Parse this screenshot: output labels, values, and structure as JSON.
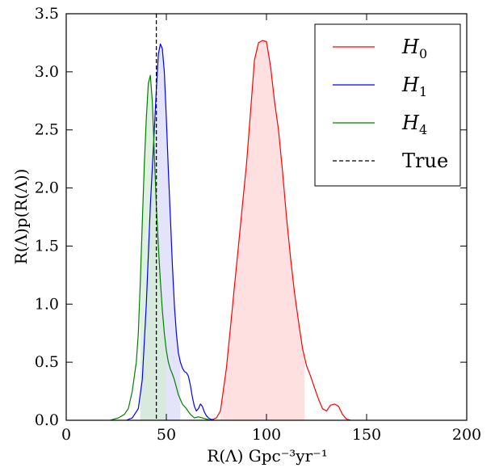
{
  "chart_data": {
    "type": "line",
    "title": "",
    "xlabel": "R(Λ) Gpc⁻³yr⁻¹",
    "ylabel": "R(Λ)p(R(Λ))",
    "xlim": [
      0,
      200
    ],
    "ylim": [
      0,
      3.5
    ],
    "x_ticks": [
      0,
      50,
      100,
      150,
      200
    ],
    "x_tick_labels": [
      "0",
      "50",
      "100",
      "150",
      "200"
    ],
    "y_ticks": [
      0.0,
      0.5,
      1.0,
      1.5,
      2.0,
      2.5,
      3.0,
      3.5
    ],
    "y_tick_labels": [
      "0.0",
      "0.5",
      "1.0",
      "1.5",
      "2.0",
      "2.5",
      "3.0",
      "3.5"
    ],
    "grid": false,
    "legend_position": "top-right",
    "series": [
      {
        "name": "H0",
        "color": "#ff0000",
        "fill_color": "#ffd6d6",
        "credible_interval": [
          77,
          119
        ],
        "x": [
          72,
          75,
          77,
          78,
          80,
          82,
          84,
          86,
          88,
          90,
          92,
          94,
          96,
          98,
          100,
          102,
          104,
          106,
          108,
          110,
          112,
          114,
          116,
          118,
          120,
          122,
          124,
          126,
          128,
          130,
          132,
          134,
          136,
          138,
          140,
          142
        ],
        "y": [
          0.0,
          0.02,
          0.08,
          0.2,
          0.45,
          0.8,
          1.15,
          1.5,
          1.85,
          2.2,
          2.65,
          3.1,
          3.25,
          3.27,
          3.26,
          3.05,
          2.75,
          2.5,
          2.15,
          1.75,
          1.4,
          1.1,
          0.85,
          0.62,
          0.47,
          0.38,
          0.28,
          0.18,
          0.1,
          0.08,
          0.13,
          0.14,
          0.12,
          0.05,
          0.01,
          0.0
        ]
      },
      {
        "name": "H1",
        "color": "#0000ff",
        "fill_color": "#dadaf8",
        "credible_interval": [
          37,
          57
        ],
        "x": [
          30,
          33,
          36,
          38,
          40,
          42,
          44,
          45,
          46,
          47,
          48,
          49,
          50,
          51,
          52,
          53,
          54,
          55,
          56,
          57,
          58,
          59,
          60,
          61,
          62,
          63,
          64,
          65,
          66,
          67,
          68,
          69,
          70,
          71,
          72,
          74
        ],
        "y": [
          0.0,
          0.02,
          0.1,
          0.35,
          1.0,
          1.85,
          2.5,
          2.85,
          3.15,
          3.24,
          3.2,
          3.0,
          2.6,
          2.15,
          1.75,
          1.35,
          1.0,
          0.75,
          0.58,
          0.5,
          0.45,
          0.42,
          0.41,
          0.38,
          0.3,
          0.2,
          0.12,
          0.08,
          0.1,
          0.14,
          0.12,
          0.07,
          0.04,
          0.02,
          0.01,
          0.0
        ]
      },
      {
        "name": "H4",
        "color": "#008000",
        "fill_color": "#d4ecd4",
        "credible_interval": [
          37,
          50
        ],
        "x": [
          22,
          26,
          29,
          31,
          33,
          35,
          36,
          37,
          38,
          39,
          40,
          41,
          42,
          43,
          44,
          45,
          46,
          47,
          48,
          49,
          50,
          51,
          52,
          53,
          54,
          56,
          58,
          60,
          62,
          64,
          66,
          68,
          70,
          72
        ],
        "y": [
          0.0,
          0.02,
          0.05,
          0.1,
          0.25,
          0.5,
          0.75,
          1.2,
          1.7,
          2.2,
          2.6,
          2.9,
          2.97,
          2.75,
          2.3,
          1.85,
          1.5,
          1.2,
          0.95,
          0.75,
          0.6,
          0.5,
          0.44,
          0.4,
          0.35,
          0.22,
          0.14,
          0.1,
          0.05,
          0.02,
          0.03,
          0.02,
          0.01,
          0.0
        ]
      }
    ],
    "reference_lines": [
      {
        "name": "True",
        "x": 45,
        "color": "#000000",
        "style": "dashed"
      }
    ],
    "legend": [
      {
        "base": "H",
        "sub": "0",
        "color": "#ff0000",
        "style": "solid"
      },
      {
        "base": "H",
        "sub": "1",
        "color": "#0000ff",
        "style": "solid"
      },
      {
        "base": "H",
        "sub": "4",
        "color": "#008000",
        "style": "solid"
      },
      {
        "label": "True",
        "color": "#000000",
        "style": "dashed"
      }
    ]
  }
}
